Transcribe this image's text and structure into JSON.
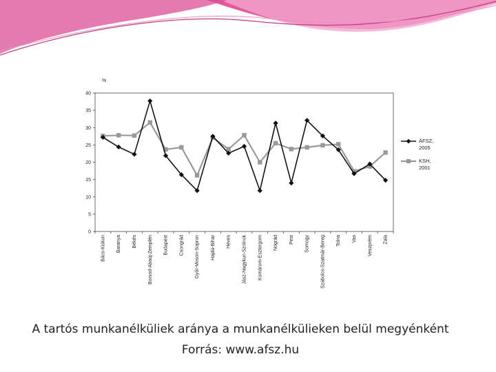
{
  "caption": {
    "title": "A tartós munkanélküliek aránya a munkanélkülieken belül megyénként",
    "source": "Forrás: www.afsz.hu"
  },
  "colors": {
    "wave_pink": "#e23a8a",
    "wave_light": "#f3a6cf",
    "series_afsz": "#111111",
    "series_ksh": "#999999"
  },
  "chart_data": {
    "type": "line",
    "ylabel": "%",
    "ylim": [
      0,
      40
    ],
    "yticks": [
      0,
      5,
      10,
      15,
      20,
      25,
      30,
      35,
      40
    ],
    "grid": false,
    "legend_position": "right",
    "categories": [
      "Bács-Kiskun",
      "Baranya",
      "Békés",
      "Borsod-Abaúj-Zemplén",
      "Budapest",
      "Csongrád",
      "Győr-Moson-Sopron",
      "Hajdú-Bihar",
      "Heves",
      "Jász-Nagykun-Szolnok",
      "Komárom-Esztergom",
      "Nógrád",
      "Pest",
      "Somogy",
      "Szabolcs-Szatmár-Bereg",
      "Tolna",
      "Vas",
      "Veszprém",
      "Zala"
    ],
    "series": [
      {
        "name": "ÁFSZ, 2005",
        "name_lines": [
          "ÁFSZ,",
          "2005"
        ],
        "marker": "diamond",
        "values": [
          27.2,
          24.4,
          22.3,
          37.7,
          21.9,
          16.4,
          11.8,
          27.5,
          22.6,
          24.6,
          11.8,
          31.3,
          14.0,
          32.1,
          27.6,
          23.6,
          16.7,
          19.5,
          14.8
        ]
      },
      {
        "name": "KSH, 2001",
        "name_lines": [
          "KSH,",
          "2001"
        ],
        "marker": "square",
        "values": [
          27.6,
          27.8,
          27.7,
          31.5,
          23.7,
          24.3,
          16.2,
          27.1,
          23.8,
          27.8,
          20.0,
          25.5,
          23.8,
          24.3,
          24.9,
          25.2,
          17.4,
          18.8,
          22.8
        ]
      }
    ]
  }
}
